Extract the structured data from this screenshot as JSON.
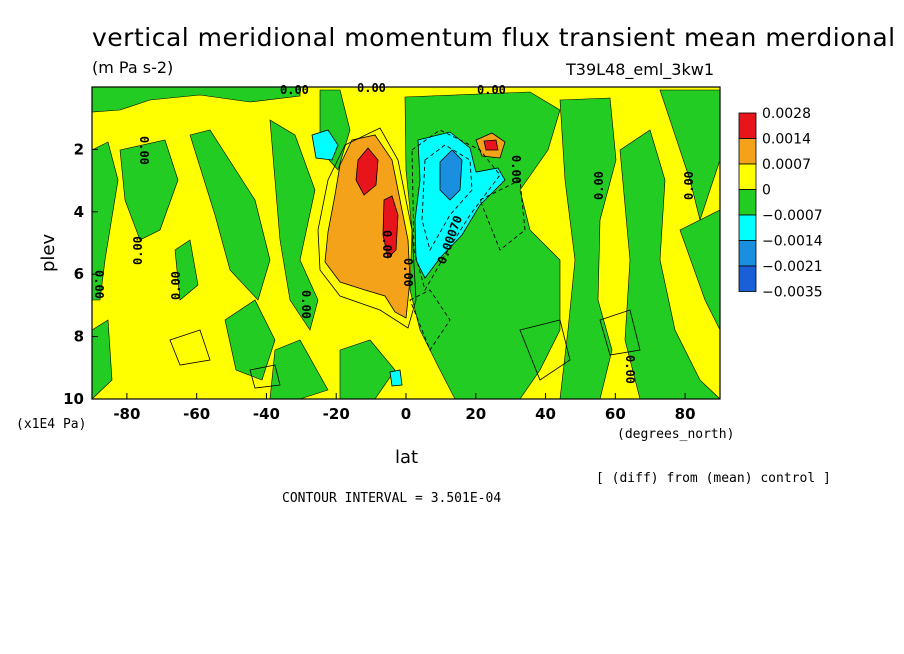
{
  "chart_data": {
    "type": "heatmap",
    "title": "vertical meridional momentum flux transient mean merdional",
    "units": "(m Pa s-2)",
    "run_label": "T39L48_eml_3kw1",
    "xlabel": "lat",
    "xunits": "(degrees_north)",
    "ylabel": "plev",
    "yunits": "(x1E4 Pa)",
    "xlim": [
      -90,
      90
    ],
    "ylim": [
      10,
      0
    ],
    "x_ticks": [
      "-80",
      "-60",
      "-40",
      "-20",
      "0",
      "20",
      "40",
      "60",
      "80"
    ],
    "x_tick_values": [
      -80,
      -60,
      -40,
      -20,
      0,
      20,
      40,
      60,
      80
    ],
    "y_ticks": [
      "2",
      "4",
      "6",
      "8",
      "10"
    ],
    "y_tick_values": [
      2,
      4,
      6,
      8,
      10
    ],
    "colorbar": {
      "labels": [
        "0.0028",
        "0.0014",
        "0.0007",
        "0",
        "−0.0007",
        "−0.0014",
        "−0.0021",
        "−0.0035"
      ],
      "colors": [
        "#e8141b",
        "#f4a21a",
        "#ffff00",
        "#22cc22",
        "#00ffff",
        "#1a8fe0",
        "#1a5fd8"
      ]
    },
    "contour_interval_text": "CONTOUR INTERVAL = 3.501E-04",
    "diff_note": "[ (diff) from (mean) control ]",
    "contour_labels": [
      "0.00",
      "0.00",
      "0.00",
      "0.00",
      "0.00",
      "0.00",
      "0.00",
      "0.00",
      "0.00",
      "0.00",
      "0.00",
      "0.00070",
      "0.00",
      "0.00",
      "0.00"
    ],
    "regions": [
      {
        "level": "0.0007",
        "lat": [
          -22,
          2
        ],
        "plev": [
          3.0,
          7.2
        ],
        "note": "orange lobe SH subtropics"
      },
      {
        "level": "0.0028",
        "lat": [
          -14,
          -9
        ],
        "plev": [
          2.2,
          3.6
        ],
        "note": "red core"
      },
      {
        "level": "0.0028",
        "lat": [
          -6,
          -3
        ],
        "plev": [
          3.6,
          5.3
        ],
        "note": "red core"
      },
      {
        "level": "0.0028",
        "lat": [
          23,
          27
        ],
        "plev": [
          1.8,
          2.2
        ],
        "note": "red spot"
      },
      {
        "level": "-0.0014",
        "lat": [
          0,
          27
        ],
        "plev": [
          1.7,
          7.0
        ],
        "note": "cyan lobe NH"
      },
      {
        "level": "-0.0021",
        "lat": [
          8,
          16
        ],
        "plev": [
          2.3,
          3.8
        ],
        "note": "blue core"
      },
      {
        "level": "-0.0014",
        "lat": [
          -26,
          -20
        ],
        "plev": [
          1.6,
          2.5
        ],
        "note": "cyan spot"
      }
    ]
  }
}
